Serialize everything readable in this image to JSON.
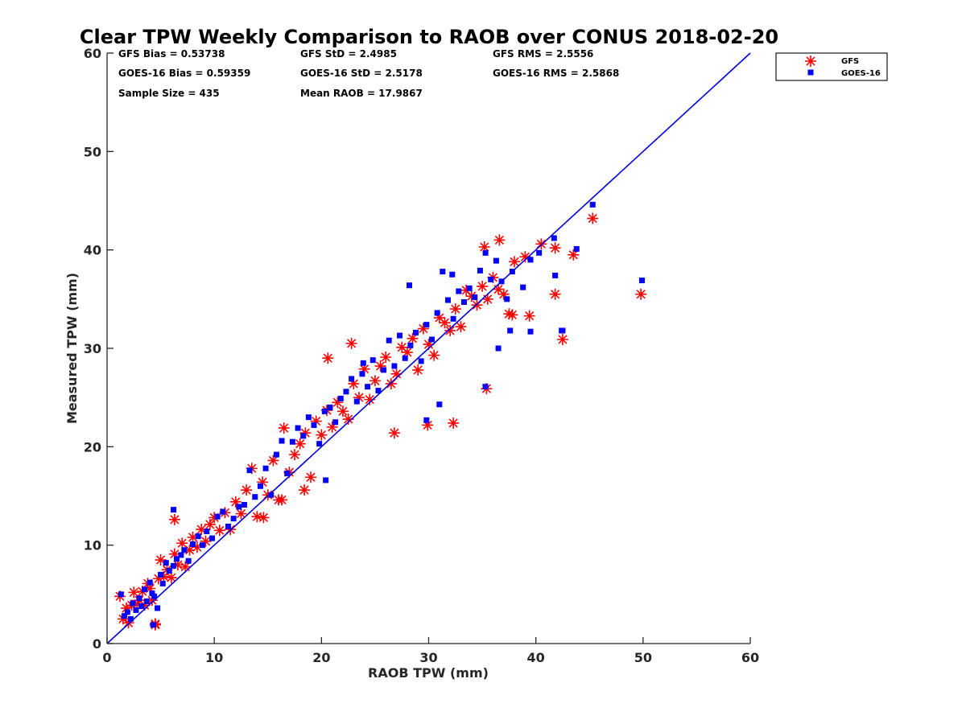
{
  "chart_data": {
    "type": "scatter",
    "title": "Clear TPW Weekly Comparison to RAOB over CONUS 2018-02-20",
    "xlabel": "RAOB TPW (mm)",
    "ylabel": "Measured TPW (mm)",
    "xlim": [
      0,
      60
    ],
    "ylim": [
      0,
      60
    ],
    "xticks": [
      "0",
      "10",
      "20",
      "30",
      "40",
      "50",
      "60"
    ],
    "yticks": [
      "0",
      "10",
      "20",
      "30",
      "40",
      "50",
      "60"
    ],
    "grid": false,
    "legend_position": "outside top-right",
    "stats": [
      "GFS Bias = 0.53738",
      "GFS StD = 2.4985",
      "GFS RMS = 2.5556",
      "GOES-16 Bias = 0.59359",
      "GOES-16 StD = 2.5178",
      "GOES-16 RMS = 2.5868",
      "Sample Size = 435",
      "Mean RAOB = 17.9867"
    ],
    "reference_line": {
      "name": "1:1 line",
      "x": [
        0,
        60
      ],
      "y": [
        0,
        60
      ],
      "color": "#0000d9"
    },
    "series": [
      {
        "name": "GFS",
        "marker": "asterisk",
        "color": "#ff0000",
        "x": [
          1.2,
          1.5,
          1.8,
          2.0,
          2.3,
          2.5,
          2.8,
          3.0,
          3.3,
          3.5,
          3.8,
          4.0,
          4.2,
          4.5,
          4.8,
          5.0,
          5.3,
          5.6,
          6.0,
          6.3,
          6.6,
          7.0,
          7.3,
          7.7,
          8.0,
          8.4,
          8.8,
          9.2,
          9.6,
          10.0,
          10.5,
          11.0,
          11.5,
          12.0,
          12.5,
          13.0,
          13.5,
          14.0,
          14.5,
          15.0,
          15.5,
          16.0,
          16.5,
          17.0,
          17.5,
          18.0,
          18.5,
          19.0,
          19.5,
          20.0,
          20.5,
          21.0,
          21.5,
          22.0,
          22.5,
          23.0,
          23.5,
          24.0,
          24.5,
          25.0,
          25.5,
          26.0,
          26.5,
          27.0,
          27.5,
          28.0,
          28.5,
          29.0,
          29.5,
          30.0,
          30.5,
          31.0,
          31.5,
          32.0,
          32.5,
          33.0,
          33.5,
          34.0,
          34.5,
          35.0,
          35.5,
          36.0,
          36.5,
          37.0,
          37.5,
          38.0,
          39.0,
          40.5,
          41.8,
          43.5,
          45.3,
          49.8,
          36.6,
          35.4,
          32.3,
          29.9,
          26.8,
          41.8,
          39.4,
          42.5,
          35.2,
          37.8,
          20.6,
          14.6,
          6.3,
          4.5,
          16.3,
          22.8,
          18.4
        ],
        "y": [
          4.8,
          2.5,
          3.6,
          2.1,
          3.9,
          5.2,
          4.0,
          4.4,
          5.3,
          3.9,
          6.1,
          5.6,
          4.4,
          2.0,
          6.6,
          8.5,
          6.8,
          7.5,
          6.7,
          9.1,
          8.0,
          10.2,
          7.8,
          9.5,
          10.8,
          9.8,
          11.6,
          10.4,
          12.1,
          12.8,
          11.5,
          13.3,
          11.6,
          14.4,
          13.2,
          15.6,
          17.8,
          12.9,
          16.4,
          15.1,
          18.6,
          14.6,
          21.9,
          17.4,
          19.2,
          20.3,
          21.4,
          16.9,
          22.6,
          21.2,
          23.7,
          22.0,
          24.5,
          23.6,
          22.8,
          26.4,
          25.0,
          27.9,
          24.8,
          26.7,
          28.2,
          29.1,
          26.4,
          27.4,
          30.1,
          29.6,
          31.0,
          27.8,
          32.0,
          30.4,
          29.3,
          33.1,
          32.6,
          31.8,
          34.0,
          32.2,
          35.9,
          35.3,
          34.4,
          36.3,
          35.0,
          37.2,
          36.0,
          35.5,
          33.5,
          38.8,
          39.3,
          40.6,
          40.2,
          39.5,
          43.2,
          35.5,
          41.0,
          25.9,
          22.4,
          22.2,
          21.4,
          35.5,
          33.3,
          30.9,
          40.3,
          33.4,
          29.0,
          12.8,
          12.6,
          1.9,
          14.6,
          30.5,
          15.6
        ]
      },
      {
        "name": "GOES-16",
        "marker": "square",
        "color": "#0000ff",
        "x": [
          1.3,
          1.6,
          1.9,
          2.2,
          2.4,
          2.7,
          3.0,
          3.2,
          3.5,
          3.7,
          4.0,
          4.2,
          4.4,
          4.7,
          5.0,
          5.2,
          5.5,
          5.8,
          6.2,
          6.5,
          6.9,
          7.2,
          7.6,
          8.0,
          8.5,
          8.9,
          9.3,
          9.8,
          10.3,
          10.8,
          11.3,
          11.8,
          12.3,
          12.8,
          13.3,
          13.8,
          14.3,
          14.8,
          15.3,
          15.8,
          16.3,
          16.8,
          17.3,
          17.8,
          18.3,
          18.8,
          19.3,
          19.8,
          20.3,
          20.8,
          21.3,
          21.8,
          22.3,
          22.8,
          23.3,
          23.8,
          24.3,
          24.8,
          25.3,
          25.8,
          26.3,
          26.8,
          27.3,
          27.8,
          28.3,
          28.8,
          29.3,
          29.8,
          30.3,
          30.8,
          31.3,
          31.8,
          32.3,
          32.8,
          33.3,
          33.8,
          34.3,
          34.8,
          35.3,
          35.8,
          36.3,
          36.8,
          37.3,
          37.8,
          38.8,
          39.5,
          40.3,
          41.7,
          42.5,
          43.8,
          45.3,
          49.9,
          36.5,
          35.3,
          31.0,
          29.8,
          39.5,
          41.8,
          42.4,
          37.6,
          6.2,
          4.3,
          20.4,
          23.9,
          28.2,
          32.2
        ],
        "y": [
          5.0,
          2.8,
          3.2,
          2.5,
          4.1,
          3.4,
          4.6,
          3.8,
          5.5,
          4.3,
          6.2,
          5.1,
          4.8,
          3.6,
          7.0,
          6.1,
          8.2,
          7.4,
          7.9,
          8.6,
          9.0,
          9.5,
          8.4,
          10.1,
          10.9,
          10.0,
          11.4,
          10.7,
          12.9,
          13.4,
          11.9,
          12.7,
          13.9,
          14.1,
          17.6,
          14.9,
          16.0,
          17.8,
          15.1,
          19.2,
          20.6,
          17.3,
          20.5,
          21.9,
          21.1,
          23.0,
          22.2,
          20.3,
          23.6,
          24.0,
          22.5,
          24.9,
          25.6,
          26.9,
          24.6,
          27.4,
          26.1,
          28.8,
          25.7,
          27.8,
          30.8,
          28.2,
          31.3,
          29.0,
          30.3,
          31.6,
          28.7,
          32.4,
          30.9,
          33.6,
          37.8,
          34.9,
          33.0,
          35.8,
          34.7,
          36.1,
          35.2,
          37.9,
          39.7,
          37.0,
          38.9,
          36.8,
          35.0,
          37.8,
          36.2,
          39.0,
          39.7,
          41.2,
          31.8,
          40.1,
          44.6,
          36.9,
          30.0,
          26.1,
          24.3,
          22.7,
          31.7,
          37.4,
          31.8,
          31.8,
          13.6,
          1.9,
          16.6,
          28.5,
          36.4,
          37.5
        ]
      }
    ]
  }
}
